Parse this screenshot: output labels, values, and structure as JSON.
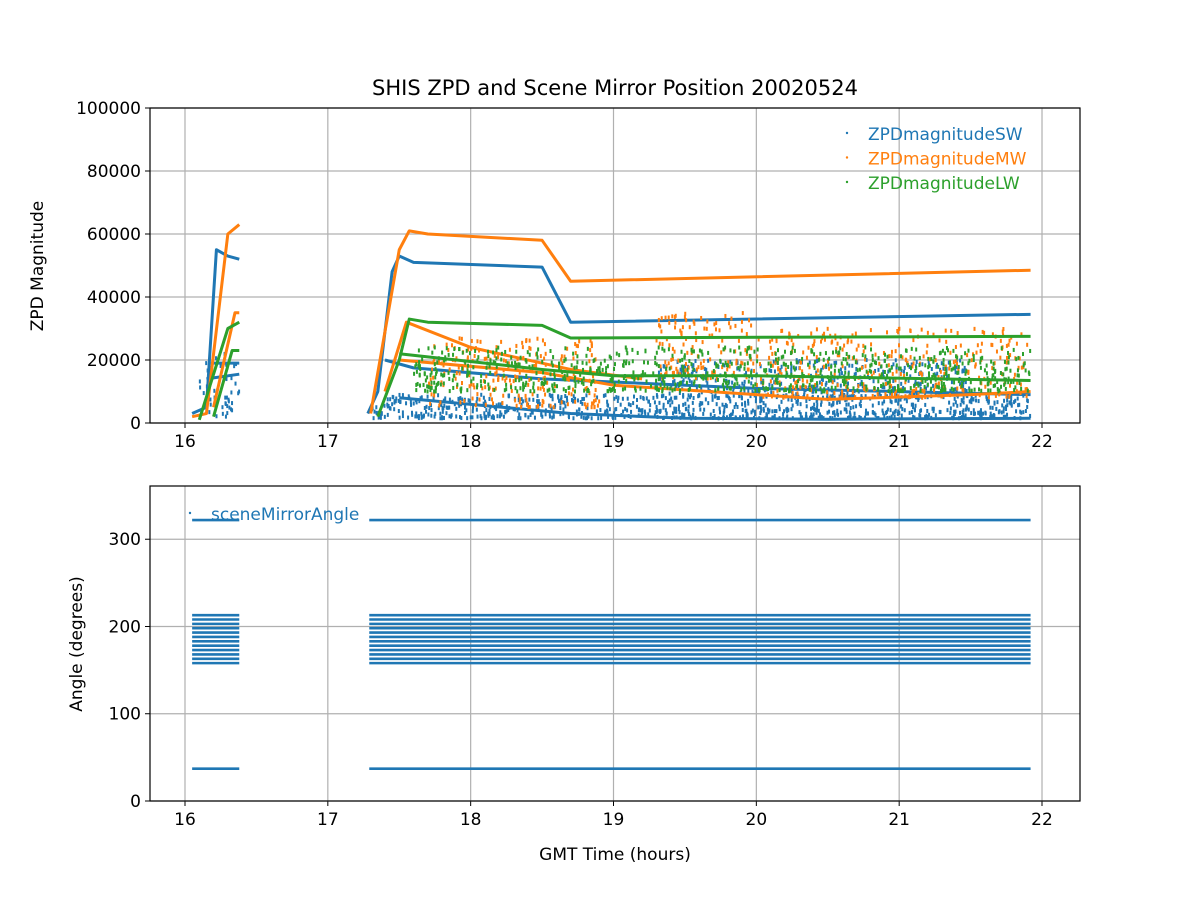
{
  "chart_data": [
    {
      "type": "scatter",
      "title": "SHIS ZPD and Scene Mirror Position 20020524",
      "xlabel": "",
      "ylabel": "ZPD Magnitude",
      "xlim": [
        15.755,
        22.266
      ],
      "ylim": [
        0,
        100000
      ],
      "xticks": [
        16,
        17,
        18,
        19,
        20,
        21,
        22
      ],
      "yticks": [
        0,
        20000,
        40000,
        60000,
        80000,
        100000
      ],
      "grid": true,
      "legend_placement": "top-right",
      "series": [
        {
          "name": "ZPDmagnitudeSW",
          "color": "#1f77b4",
          "traces": [
            [
              [
                16.05,
                3000
              ],
              [
                16.15,
                5000
              ],
              [
                16.22,
                55000
              ],
              [
                16.3,
                53000
              ],
              [
                16.38,
                52000
              ]
            ],
            [
              [
                16.15,
                14000
              ],
              [
                16.38,
                15500
              ]
            ],
            [
              [
                16.18,
                19000
              ],
              [
                16.38,
                19000
              ]
            ],
            [
              [
                17.28,
                3000
              ],
              [
                17.35,
                10000
              ],
              [
                17.45,
                48000
              ],
              [
                17.5,
                53000
              ],
              [
                17.6,
                51000
              ],
              [
                18.5,
                49500
              ],
              [
                18.7,
                32000
              ],
              [
                21.92,
                34500
              ]
            ],
            [
              [
                17.4,
                20000
              ],
              [
                17.6,
                17500
              ],
              [
                18.5,
                14000
              ],
              [
                19,
                13000
              ],
              [
                20,
                11000
              ],
              [
                21.92,
                9000
              ]
            ],
            [
              [
                17.5,
                8000
              ],
              [
                18.7,
                3000
              ],
              [
                19.5,
                1500
              ],
              [
                20.5,
                1200
              ],
              [
                21.92,
                1500
              ]
            ]
          ],
          "noise_bands": [
            [
              16.1,
              16.38,
              2000,
              22000
            ],
            [
              17.3,
              21.92,
              1500,
              9000
            ],
            [
              19.3,
              21.5,
              8000,
              20000
            ]
          ]
        },
        {
          "name": "ZPDmagnitudeMW",
          "color": "#ff7f0e",
          "traces": [
            [
              [
                16.05,
                2000
              ],
              [
                16.15,
                3000
              ],
              [
                16.3,
                60000
              ],
              [
                16.38,
                63000
              ]
            ],
            [
              [
                16.2,
                5000
              ],
              [
                16.35,
                35000
              ],
              [
                16.38,
                35000
              ]
            ],
            [
              [
                17.3,
                3000
              ],
              [
                17.5,
                55000
              ],
              [
                17.57,
                61000
              ],
              [
                17.7,
                60000
              ],
              [
                18.5,
                58000
              ],
              [
                18.7,
                45000
              ],
              [
                21.92,
                48500
              ]
            ],
            [
              [
                17.4,
                10000
              ],
              [
                17.55,
                32000
              ],
              [
                18,
                24000
              ],
              [
                18.7,
                17000
              ],
              [
                19.2,
                14000
              ]
            ],
            [
              [
                17.5,
                20000
              ],
              [
                18.5,
                16000
              ],
              [
                19,
                12000
              ],
              [
                20,
                9000
              ],
              [
                20.5,
                7500
              ],
              [
                21.5,
                9000
              ],
              [
                21.92,
                10000
              ]
            ]
          ],
          "noise_bands": [
            [
              17.7,
              18.9,
              5000,
              27000
            ],
            [
              19.3,
              20.0,
              14000,
              35000
            ],
            [
              20.0,
              21.9,
              8000,
              30000
            ]
          ]
        },
        {
          "name": "ZPDmagnitudeLW",
          "color": "#2ca02c",
          "traces": [
            [
              [
                16.1,
                1000
              ],
              [
                16.3,
                30000
              ],
              [
                16.38,
                32000
              ]
            ],
            [
              [
                16.2,
                2000
              ],
              [
                16.33,
                23000
              ],
              [
                16.38,
                23000
              ]
            ],
            [
              [
                17.35,
                2000
              ],
              [
                17.5,
                20000
              ],
              [
                17.57,
                33000
              ],
              [
                17.7,
                32000
              ],
              [
                18.5,
                31000
              ],
              [
                18.7,
                27000
              ],
              [
                21.92,
                27500
              ]
            ],
            [
              [
                17.5,
                22000
              ],
              [
                18.5,
                17000
              ],
              [
                19,
                15000
              ],
              [
                20,
                15000
              ],
              [
                21.92,
                13500
              ]
            ]
          ],
          "noise_bands": [
            [
              17.6,
              21.92,
              10000,
              24000
            ]
          ]
        }
      ]
    },
    {
      "type": "scatter",
      "title": "",
      "xlabel": "GMT Time (hours)",
      "ylabel": "Angle (degrees)",
      "xlim": [
        15.755,
        22.266
      ],
      "ylim": [
        0,
        361
      ],
      "xticks": [
        16,
        17,
        18,
        19,
        20,
        21,
        22
      ],
      "yticks": [
        0,
        100,
        200,
        300
      ],
      "grid": true,
      "legend_placement": "top-left",
      "series": [
        {
          "name": "sceneMirrorAngle",
          "color": "#1f77b4",
          "segments": [
            [
              16.05,
              16.38
            ],
            [
              17.29,
              21.92
            ]
          ],
          "levels": [
            322,
            213,
            208,
            203,
            198,
            193,
            188,
            183,
            178,
            173,
            168,
            163,
            158,
            37
          ]
        }
      ]
    }
  ]
}
